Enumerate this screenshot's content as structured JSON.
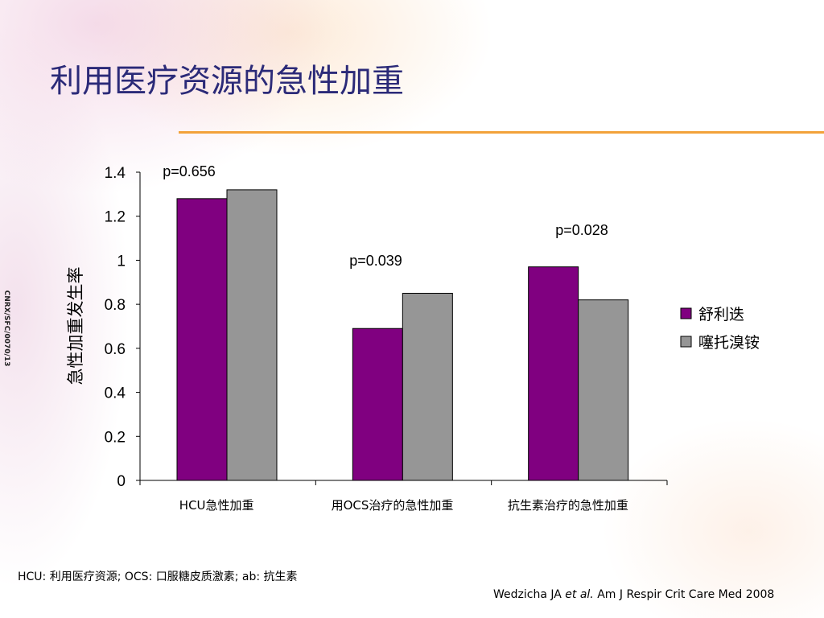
{
  "slide": {
    "title": "利用医疗资源的急性加重",
    "side_code": "CNRX/SFC/0070/13",
    "footnote": "HCU: 利用医疗资源; OCS: 口服糖皮质激素; ab: 抗生素",
    "citation": {
      "authors": "Wedzicha JA",
      "et_al": "et al.",
      "journal": "Am J Respir Crit Care Med 2008"
    }
  },
  "colors": {
    "title": "#2b2a78",
    "rule": "#f2a23a",
    "series_1": "#800080",
    "series_2": "#969696"
  },
  "chart_data": {
    "type": "bar",
    "categories": [
      "HCU急性加重",
      "用OCS治疗的急性加重",
      "抗生素治疗的急性加重"
    ],
    "series": [
      {
        "name": "舒利迭",
        "values": [
          1.28,
          0.69,
          0.97
        ]
      },
      {
        "name": "噻托溴铵",
        "values": [
          1.32,
          0.85,
          0.82
        ]
      }
    ],
    "annotations": [
      "p=0.656",
      "p=0.039",
      "p=0.028"
    ],
    "ylabel": "急性加重发生率",
    "xlabel": "",
    "ylim": [
      0,
      1.4
    ],
    "yticks": [
      0,
      0.2,
      0.4,
      0.6,
      0.8,
      1,
      1.2,
      1.4
    ],
    "ytick_labels": [
      "0",
      "0.2",
      "0.4",
      "0.6",
      "0.8",
      "1",
      "1.2",
      "1.4"
    ],
    "grid": false,
    "legend_position": "right"
  }
}
